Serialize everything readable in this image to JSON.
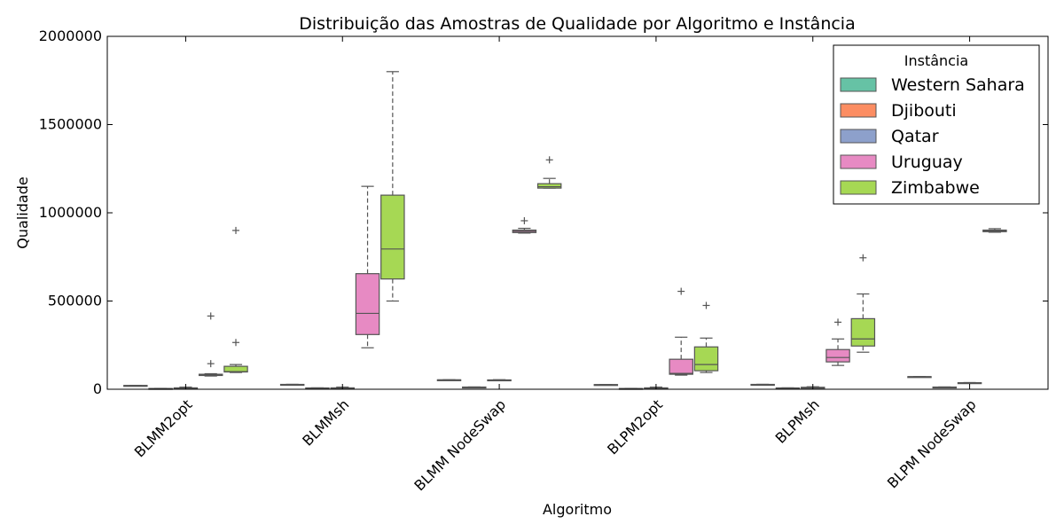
{
  "colors": {
    "Western Sahara": "#66c2a5",
    "Djibouti": "#fc8d62",
    "Qatar": "#8da0cb",
    "Uruguay": "#e78ac3",
    "Zimbabwe": "#a6d854",
    "stroke": "#555555"
  },
  "chart_data": {
    "type": "box",
    "title": "Distribuição das Amostras de Qualidade por Algoritmo e Instância",
    "xlabel": "Algoritmo",
    "ylabel": "Qualidade",
    "ylim": [
      0,
      2000000
    ],
    "yticks": [
      0,
      500000,
      1000000,
      1500000,
      2000000
    ],
    "ytick_labels": [
      "0",
      "500000",
      "1000000",
      "1500000",
      "2000000"
    ],
    "categories": [
      "BLMM2opt",
      "BLMMsh",
      "BLMM NodeSwap",
      "BLPM2opt",
      "BLPMsh",
      "BLPM NodeSwap"
    ],
    "legend": {
      "title": "Instância",
      "position": "top-right"
    },
    "grid": false,
    "series": [
      {
        "name": "Western Sahara",
        "boxes": [
          {
            "whislo": 20000,
            "q1": 20500,
            "med": 21000,
            "q3": 21500,
            "whishi": 22000,
            "fliers": []
          },
          {
            "whislo": 26000,
            "q1": 26500,
            "med": 27000,
            "q3": 27500,
            "whishi": 28000,
            "fliers": []
          },
          {
            "whislo": 52000,
            "q1": 52500,
            "med": 53000,
            "q3": 53500,
            "whishi": 54000,
            "fliers": []
          },
          {
            "whislo": 25000,
            "q1": 25500,
            "med": 26000,
            "q3": 26500,
            "whishi": 27000,
            "fliers": []
          },
          {
            "whislo": 26000,
            "q1": 26500,
            "med": 27000,
            "q3": 27500,
            "whishi": 28000,
            "fliers": []
          },
          {
            "whislo": 70000,
            "q1": 70500,
            "med": 71000,
            "q3": 71500,
            "whishi": 72000,
            "fliers": []
          }
        ]
      },
      {
        "name": "Djibouti",
        "boxes": [
          {
            "whislo": 3000,
            "q1": 3500,
            "med": 4000,
            "q3": 4500,
            "whishi": 5000,
            "fliers": []
          },
          {
            "whislo": 6000,
            "q1": 6500,
            "med": 7000,
            "q3": 7500,
            "whishi": 8000,
            "fliers": []
          },
          {
            "whislo": 11000,
            "q1": 11500,
            "med": 12000,
            "q3": 12500,
            "whishi": 13000,
            "fliers": []
          },
          {
            "whislo": 3000,
            "q1": 3500,
            "med": 4000,
            "q3": 4500,
            "whishi": 5000,
            "fliers": []
          },
          {
            "whislo": 6000,
            "q1": 6500,
            "med": 7000,
            "q3": 7500,
            "whishi": 8000,
            "fliers": []
          },
          {
            "whislo": 11000,
            "q1": 11500,
            "med": 12000,
            "q3": 12500,
            "whishi": 13000,
            "fliers": []
          }
        ]
      },
      {
        "name": "Qatar",
        "boxes": [
          {
            "whislo": 5000,
            "q1": 6000,
            "med": 7000,
            "q3": 8000,
            "whishi": 12000,
            "fliers": []
          },
          {
            "whislo": 5000,
            "q1": 6000,
            "med": 7000,
            "q3": 8000,
            "whishi": 12000,
            "fliers": []
          },
          {
            "whislo": 50000,
            "q1": 51000,
            "med": 52000,
            "q3": 53000,
            "whishi": 54000,
            "fliers": []
          },
          {
            "whislo": 5000,
            "q1": 6000,
            "med": 7000,
            "q3": 8000,
            "whishi": 12000,
            "fliers": []
          },
          {
            "whislo": 8000,
            "q1": 9000,
            "med": 10000,
            "q3": 11000,
            "whishi": 14000,
            "fliers": []
          },
          {
            "whislo": 34000,
            "q1": 35000,
            "med": 36000,
            "q3": 37000,
            "whishi": 38000,
            "fliers": []
          }
        ]
      },
      {
        "name": "Uruguay",
        "boxes": [
          {
            "whislo": 75000,
            "q1": 78000,
            "med": 82000,
            "q3": 85000,
            "whishi": 88000,
            "fliers": [
              145000,
              415000
            ]
          },
          {
            "whislo": 235000,
            "q1": 310000,
            "med": 430000,
            "q3": 655000,
            "whishi": 1150000,
            "fliers": []
          },
          {
            "whislo": 885000,
            "q1": 888000,
            "med": 895000,
            "q3": 902000,
            "whishi": 912000,
            "fliers": [
              955000
            ]
          },
          {
            "whislo": 80000,
            "q1": 85000,
            "med": 90000,
            "q3": 170000,
            "whishi": 295000,
            "fliers": [
              555000
            ]
          },
          {
            "whislo": 135000,
            "q1": 155000,
            "med": 180000,
            "q3": 225000,
            "whishi": 285000,
            "fliers": [
              380000
            ]
          },
          {
            "whislo": 890000,
            "q1": 893000,
            "med": 897000,
            "q3": 902000,
            "whishi": 910000,
            "fliers": []
          }
        ]
      },
      {
        "name": "Zimbabwe",
        "boxes": [
          {
            "whislo": 95000,
            "q1": 98000,
            "med": 100000,
            "q3": 130000,
            "whishi": 140000,
            "fliers": [
              265000,
              900000
            ]
          },
          {
            "whislo": 500000,
            "q1": 625000,
            "med": 795000,
            "q3": 1100000,
            "whishi": 1800000,
            "fliers": []
          },
          {
            "whislo": 1140000,
            "q1": 1140000,
            "med": 1148000,
            "q3": 1165000,
            "whishi": 1195000,
            "fliers": [
              1300000
            ]
          },
          {
            "whislo": 95000,
            "q1": 105000,
            "med": 140000,
            "q3": 240000,
            "whishi": 290000,
            "fliers": [
              475000
            ]
          },
          {
            "whislo": 210000,
            "q1": 245000,
            "med": 285000,
            "q3": 400000,
            "whishi": 540000,
            "fliers": [
              745000
            ]
          },
          null
        ]
      }
    ]
  }
}
